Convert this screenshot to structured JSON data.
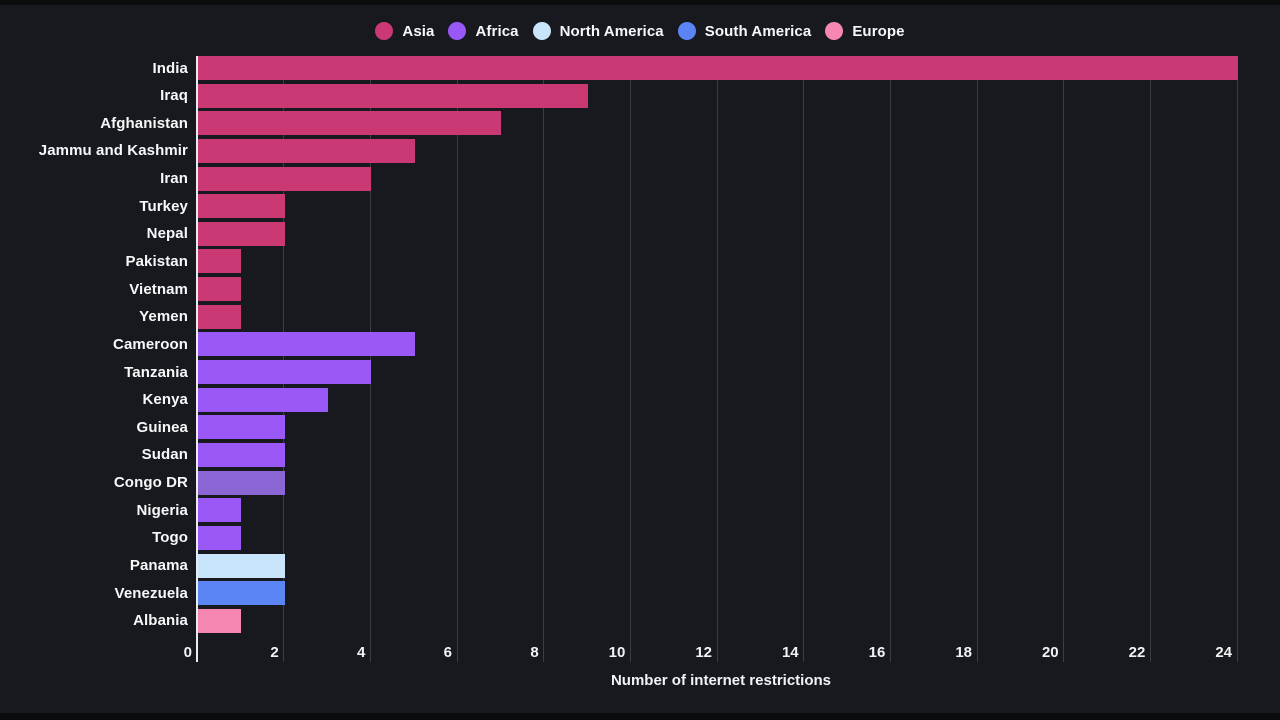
{
  "colors": {
    "background": "#17191e",
    "letterbox": "#0b0c0e",
    "gridline": "#3a3d43",
    "zero_axis_line": "#e9ebee",
    "text": "#f7f8f9"
  },
  "legend": {
    "items": [
      {
        "label": "Asia",
        "color": "#cb3975"
      },
      {
        "label": "Africa",
        "color": "#9a58f6"
      },
      {
        "label": "North America",
        "color": "#c9e5fb"
      },
      {
        "label": "South America",
        "color": "#5b85f5"
      },
      {
        "label": "Europe",
        "color": "#f687b2"
      }
    ]
  },
  "chart_data": {
    "type": "bar",
    "orientation": "horizontal",
    "xlabel": "Number of internet restrictions",
    "ylabel": "",
    "xlim": [
      0,
      24
    ],
    "x_ticks": [
      0,
      2,
      4,
      6,
      8,
      10,
      12,
      14,
      16,
      18,
      20,
      22,
      24
    ],
    "grid": "vertical",
    "legend_position": "top-center",
    "categories": [
      "India",
      "Iraq",
      "Afghanistan",
      "Jammu and Kashmir",
      "Iran",
      "Turkey",
      "Nepal",
      "Pakistan",
      "Vietnam",
      "Yemen",
      "Cameroon",
      "Tanzania",
      "Kenya",
      "Guinea",
      "Sudan",
      "Congo DR",
      "Nigeria",
      "Togo",
      "Panama",
      "Venezuela",
      "Albania"
    ],
    "values": [
      24,
      9,
      7,
      5,
      4,
      2,
      2,
      1,
      1,
      1,
      5,
      4,
      3,
      2,
      2,
      2,
      1,
      1,
      2,
      2,
      1
    ],
    "bars": [
      {
        "label": "India",
        "value": 24,
        "continent": "Asia"
      },
      {
        "label": "Iraq",
        "value": 9,
        "continent": "Asia"
      },
      {
        "label": "Afghanistan",
        "value": 7,
        "continent": "Asia"
      },
      {
        "label": "Jammu and Kashmir",
        "value": 5,
        "continent": "Asia"
      },
      {
        "label": "Iran",
        "value": 4,
        "continent": "Asia"
      },
      {
        "label": "Turkey",
        "value": 2,
        "continent": "Asia"
      },
      {
        "label": "Nepal",
        "value": 2,
        "continent": "Asia"
      },
      {
        "label": "Pakistan",
        "value": 1,
        "continent": "Asia"
      },
      {
        "label": "Vietnam",
        "value": 1,
        "continent": "Asia"
      },
      {
        "label": "Yemen",
        "value": 1,
        "continent": "Asia"
      },
      {
        "label": "Cameroon",
        "value": 5,
        "continent": "Africa"
      },
      {
        "label": "Tanzania",
        "value": 4,
        "continent": "Africa"
      },
      {
        "label": "Kenya",
        "value": 3,
        "continent": "Africa"
      },
      {
        "label": "Guinea",
        "value": 2,
        "continent": "Africa"
      },
      {
        "label": "Sudan",
        "value": 2,
        "continent": "Africa"
      },
      {
        "label": "Congo DR",
        "value": 2,
        "continent": "Africa"
      },
      {
        "label": "Nigeria",
        "value": 1,
        "continent": "Africa"
      },
      {
        "label": "Togo",
        "value": 1,
        "continent": "Africa"
      },
      {
        "label": "Panama",
        "value": 2,
        "continent": "North America"
      },
      {
        "label": "Venezuela",
        "value": 2,
        "continent": "South America"
      },
      {
        "label": "Albania",
        "value": 1,
        "continent": "Europe"
      }
    ],
    "continent_colors": {
      "Asia": "#cb3975",
      "Africa": "#9a58f6",
      "North America": "#c9e5fb",
      "South America": "#5b85f5",
      "Europe": "#f687b2"
    },
    "bar_color_overrides": {
      "Congo DR": "#8c66d4"
    }
  }
}
